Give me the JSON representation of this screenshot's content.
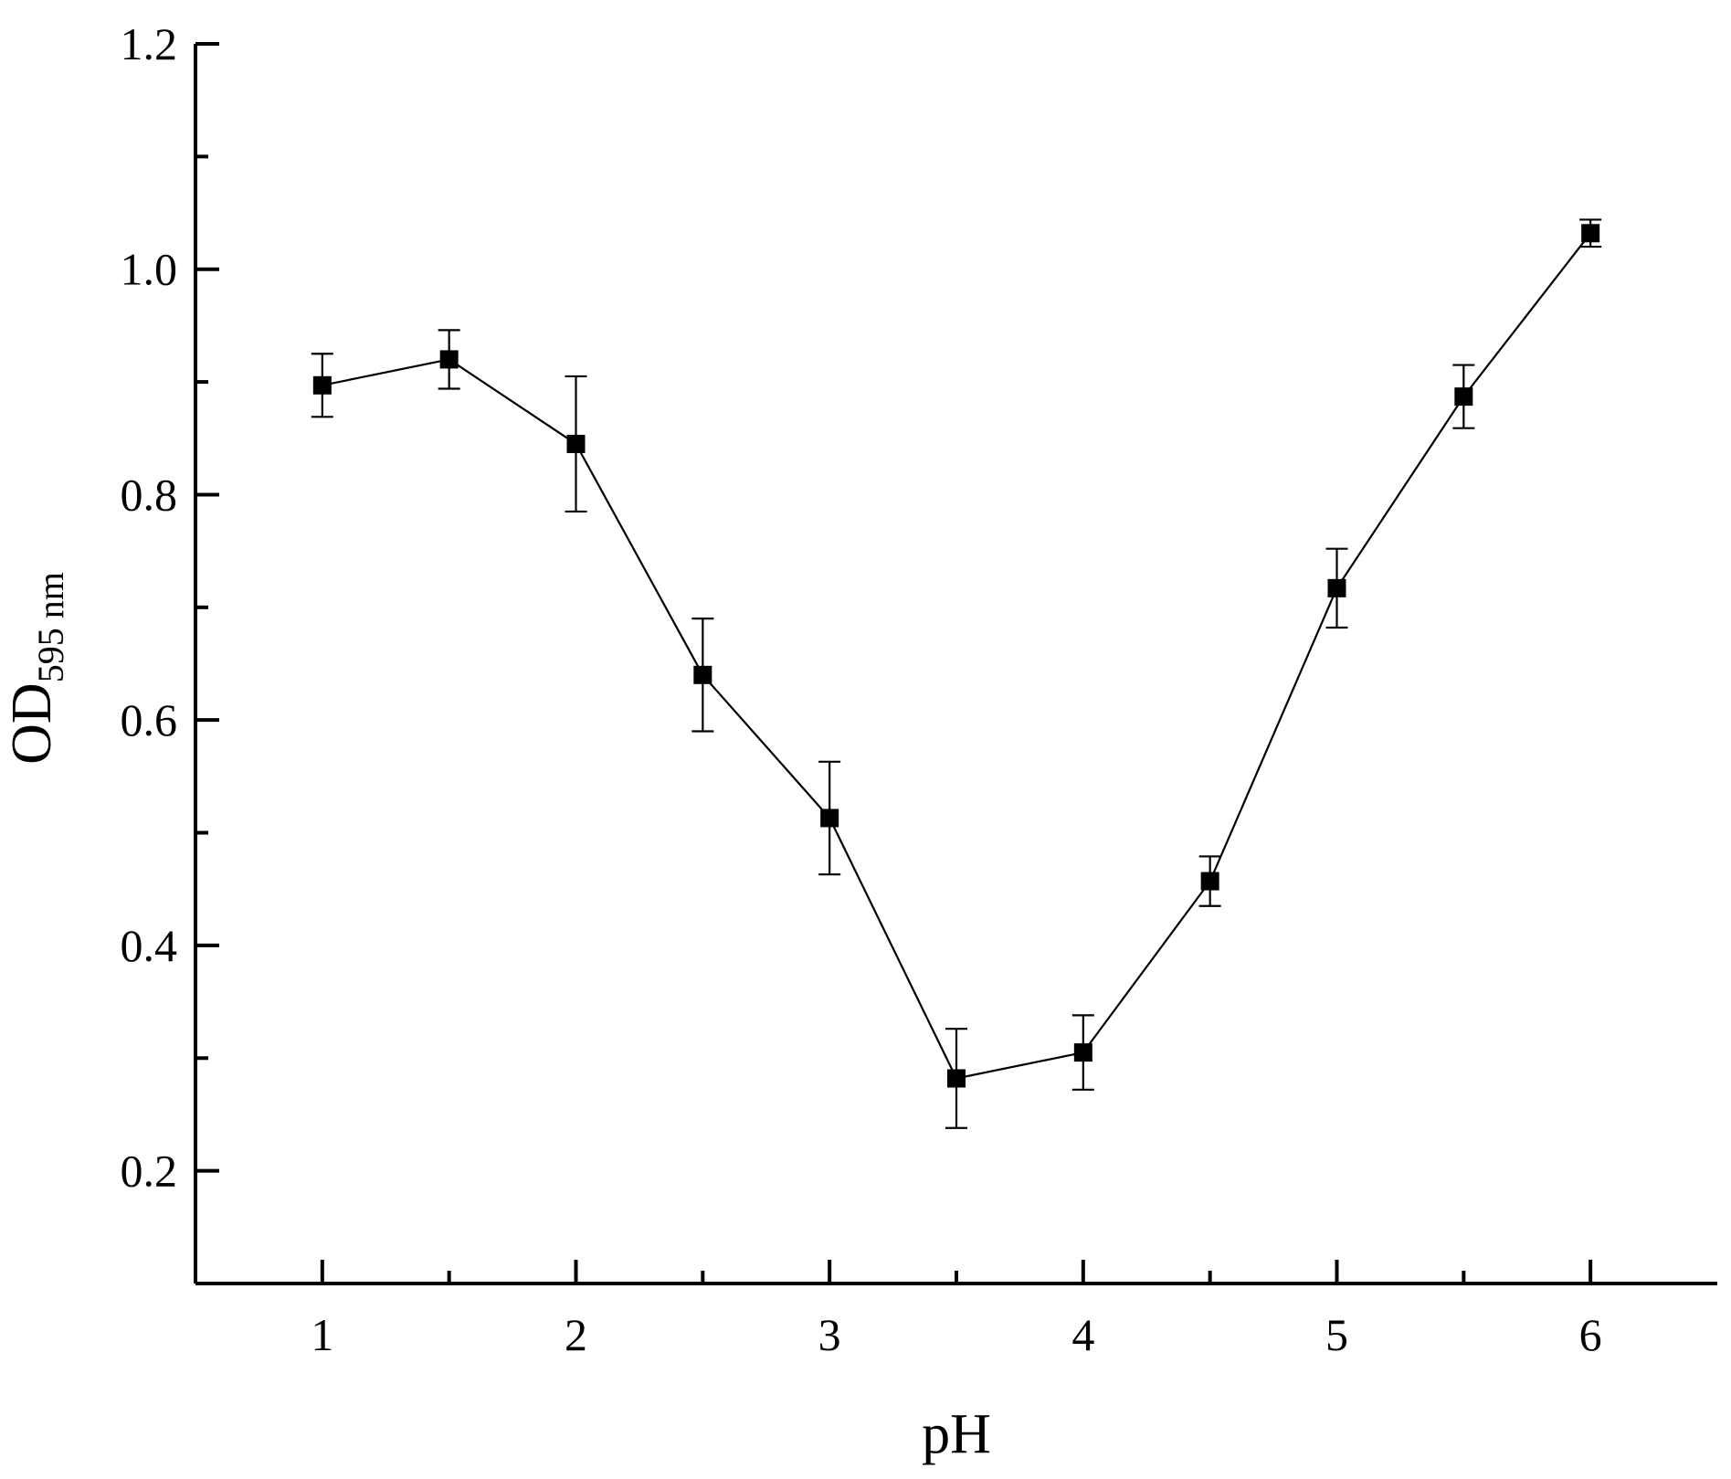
{
  "chart_data": {
    "type": "line",
    "title": "",
    "xlabel": "pH",
    "ylabel": "OD",
    "ylabel_subscript": "595 nm",
    "xlim": [
      0.5,
      6.5
    ],
    "ylim": [
      0.1,
      1.2
    ],
    "x_ticks": [
      1,
      2,
      3,
      4,
      5,
      6
    ],
    "x_minor_ticks": [
      1.5,
      2.5,
      3.5,
      4.5,
      5.5
    ],
    "y_ticks": [
      0.2,
      0.4,
      0.6,
      0.8,
      1.0,
      1.2
    ],
    "y_tick_labels": [
      "0.2",
      "0.4",
      "0.6",
      "0.8",
      "1.0",
      "1.2"
    ],
    "y_minor_ticks": [
      0.1,
      0.3,
      0.5,
      0.7,
      0.9,
      1.1
    ],
    "grid": false,
    "legend": false,
    "series": [
      {
        "marker": "square",
        "color": "#000000",
        "x": [
          1,
          1.5,
          2,
          2.5,
          3,
          3.5,
          4,
          4.5,
          5,
          5.5,
          6
        ],
        "y": [
          0.897,
          0.92,
          0.845,
          0.64,
          0.513,
          0.282,
          0.305,
          0.457,
          0.717,
          0.887,
          1.032
        ],
        "error": [
          0.028,
          0.026,
          0.06,
          0.05,
          0.05,
          0.044,
          0.033,
          0.022,
          0.035,
          0.028,
          0.012
        ]
      }
    ]
  }
}
